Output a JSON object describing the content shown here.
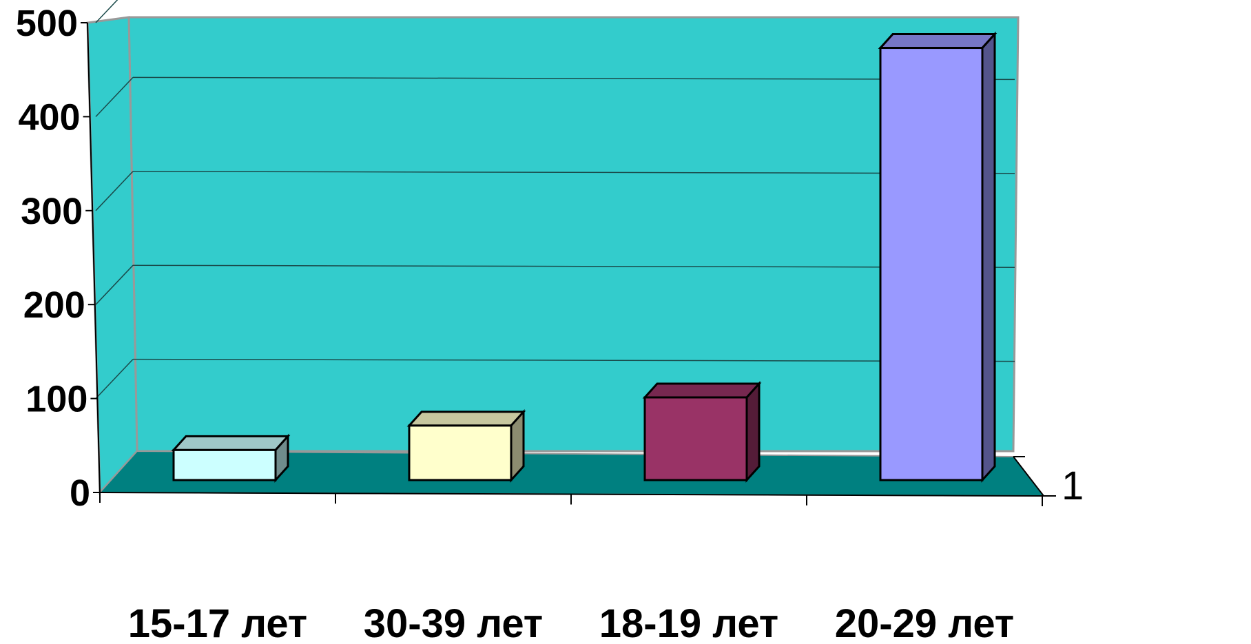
{
  "chart_data": {
    "type": "bar",
    "title": "",
    "xlabel": "",
    "ylabel": "",
    "categories": [
      "15-17 лет",
      "30-39 лет",
      "18-19 лет",
      "20-29 лет"
    ],
    "values": [
      32,
      58,
      88,
      460
    ],
    "ylim": [
      0,
      500
    ],
    "yticks": [
      "0",
      "100",
      "200",
      "300",
      "400",
      "500"
    ],
    "depth_label": "1",
    "grid": true,
    "legend": "none",
    "style": "3d",
    "colors": {
      "back_wall": "#33cccc",
      "floor": "#008080",
      "gridline": "#1a4a4a",
      "frame": "#999999",
      "bars": [
        "#ccffff",
        "#ffffcc",
        "#993366",
        "#9999ff"
      ]
    }
  }
}
